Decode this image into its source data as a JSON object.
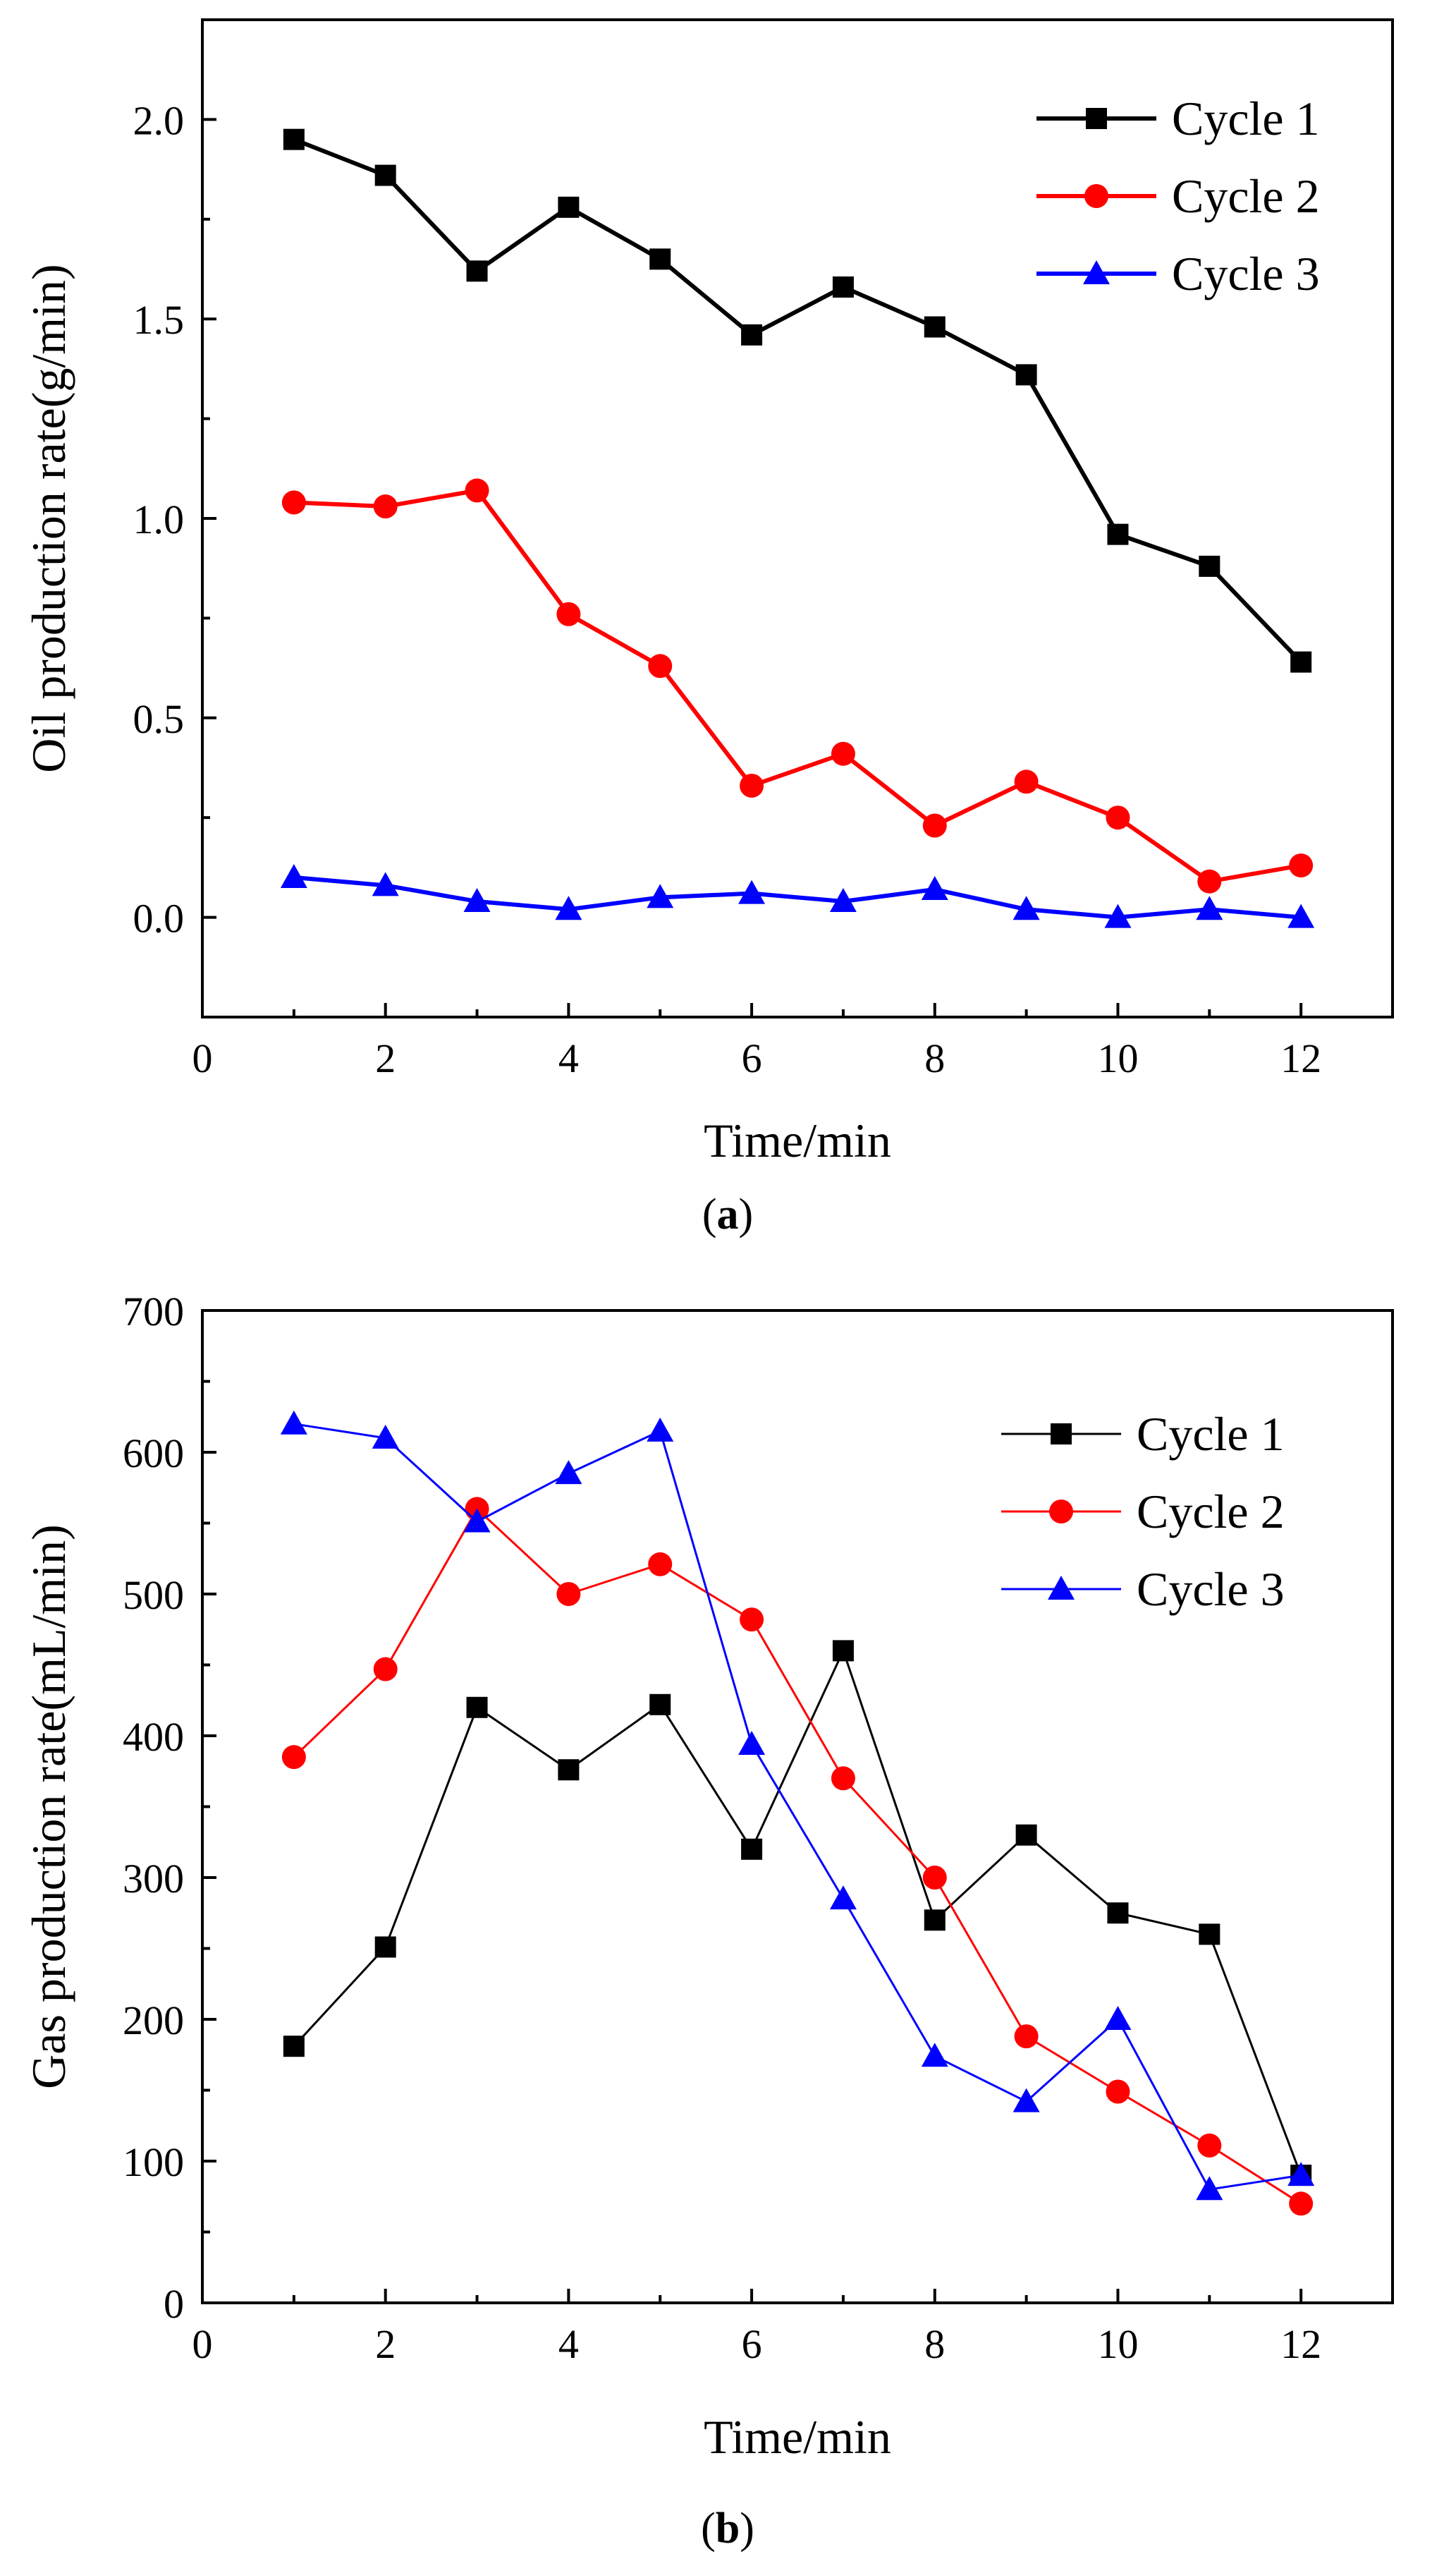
{
  "chart_data": [
    {
      "type": "line",
      "xlabel": "Time/min",
      "ylabel": "Oil production rate(g/min)",
      "caption_letter": "a",
      "xlim": [
        0,
        13
      ],
      "ylim": [
        -0.25,
        2.25
      ],
      "xticks": [
        0,
        2,
        4,
        6,
        8,
        10,
        12
      ],
      "yticks": [
        0.0,
        0.5,
        1.0,
        1.5,
        2.0
      ],
      "x": [
        1,
        2,
        3,
        4,
        5,
        6,
        7,
        8,
        9,
        10,
        11,
        12
      ],
      "legend_position": "top-right",
      "series": [
        {
          "name": "Cycle 1",
          "color": "#000000",
          "marker": "square",
          "values": [
            1.95,
            1.86,
            1.62,
            1.78,
            1.65,
            1.46,
            1.58,
            1.48,
            1.36,
            0.96,
            0.88,
            0.64
          ]
        },
        {
          "name": "Cycle 2",
          "color": "#ff0000",
          "marker": "circle",
          "values": [
            1.04,
            1.03,
            1.07,
            0.76,
            0.63,
            0.33,
            0.41,
            0.23,
            0.34,
            0.25,
            0.09,
            0.13
          ]
        },
        {
          "name": "Cycle 3",
          "color": "#0000ff",
          "marker": "triangle",
          "values": [
            0.1,
            0.08,
            0.04,
            0.02,
            0.05,
            0.06,
            0.04,
            0.07,
            0.02,
            0.0,
            0.02,
            0.0
          ]
        }
      ]
    },
    {
      "type": "line",
      "xlabel": "Time/min",
      "ylabel": "Gas production rate(mL/min)",
      "caption_letter": "b",
      "xlim": [
        0,
        13
      ],
      "ylim": [
        0,
        700
      ],
      "xticks": [
        0,
        2,
        4,
        6,
        8,
        10,
        12
      ],
      "yticks": [
        0,
        100,
        200,
        300,
        400,
        500,
        600,
        700
      ],
      "x": [
        1,
        2,
        3,
        4,
        5,
        6,
        7,
        8,
        9,
        10,
        11,
        12
      ],
      "legend_position": "top-right",
      "series": [
        {
          "name": "Cycle 1",
          "color": "#000000",
          "marker": "square",
          "values": [
            181,
            251,
            420,
            376,
            422,
            320,
            460,
            270,
            330,
            275,
            260,
            90
          ]
        },
        {
          "name": "Cycle 2",
          "color": "#ff0000",
          "marker": "circle",
          "values": [
            385,
            447,
            560,
            500,
            521,
            482,
            370,
            300,
            188,
            149,
            111,
            70
          ]
        },
        {
          "name": "Cycle 3",
          "color": "#0000ff",
          "marker": "triangle",
          "values": [
            620,
            610,
            551,
            585,
            615,
            394,
            285,
            174,
            142,
            200,
            80,
            90
          ]
        }
      ]
    }
  ]
}
